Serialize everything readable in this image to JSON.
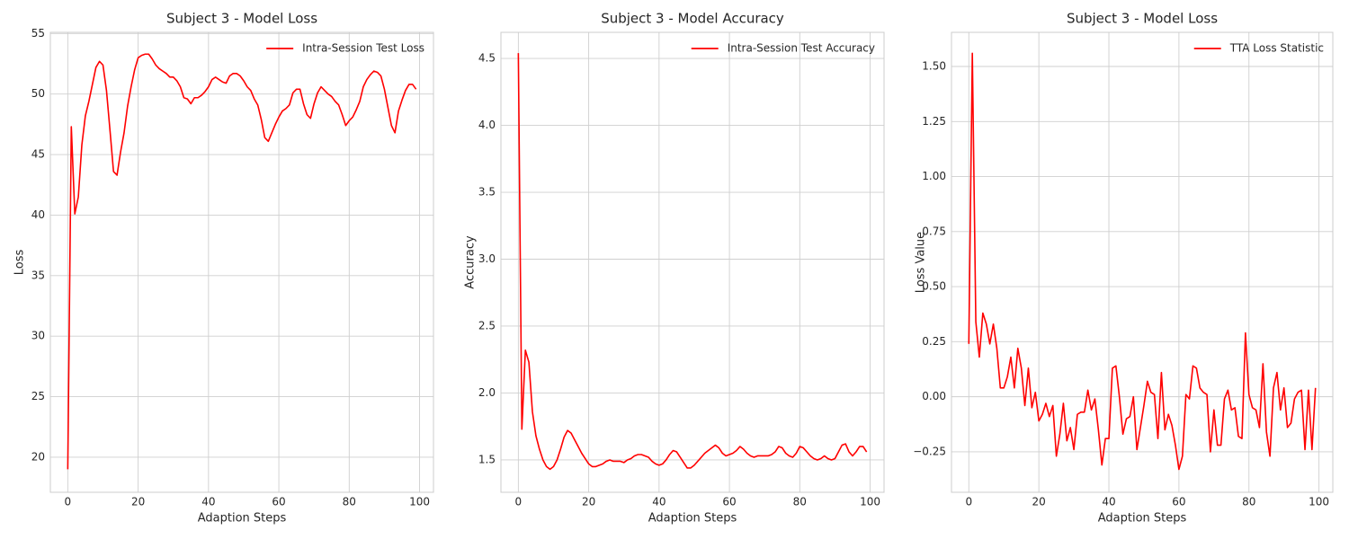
{
  "chart_data": [
    {
      "type": "line",
      "title": "Subject 3 - Model Loss",
      "x_label": "Adaption Steps",
      "y_label": "Loss",
      "x": [
        0,
        1,
        2,
        3,
        4,
        5,
        6,
        7,
        8,
        9,
        10,
        11,
        12,
        13,
        14,
        15,
        16,
        17,
        18,
        19,
        20,
        21,
        22,
        23,
        24,
        25,
        26,
        27,
        28,
        29,
        30,
        31,
        32,
        33,
        34,
        35,
        36,
        37,
        38,
        39,
        40,
        41,
        42,
        43,
        44,
        45,
        46,
        47,
        48,
        49,
        50,
        51,
        52,
        53,
        54,
        55,
        56,
        57,
        58,
        59,
        60,
        61,
        62,
        63,
        64,
        65,
        66,
        67,
        68,
        69,
        70,
        71,
        72,
        73,
        74,
        75,
        76,
        77,
        78,
        79,
        80,
        81,
        82,
        83,
        84,
        85,
        86,
        87,
        88,
        89,
        90,
        91,
        92,
        93,
        94,
        95,
        96,
        97,
        98,
        99
      ],
      "series": [
        {
          "name": "Intra-Session Test Loss",
          "color": "#ff0000",
          "values": [
            19.0,
            47.3,
            40.1,
            41.5,
            45.8,
            48.2,
            49.4,
            50.8,
            52.2,
            52.7,
            52.4,
            50.3,
            47.0,
            43.6,
            43.3,
            45.2,
            46.8,
            49.0,
            50.6,
            52.0,
            53.0,
            53.2,
            53.3,
            53.3,
            52.9,
            52.4,
            52.1,
            51.9,
            51.7,
            51.4,
            51.4,
            51.1,
            50.6,
            49.7,
            49.6,
            49.2,
            49.7,
            49.7,
            49.9,
            50.2,
            50.6,
            51.2,
            51.4,
            51.2,
            51.0,
            50.9,
            51.5,
            51.7,
            51.7,
            51.5,
            51.1,
            50.6,
            50.3,
            49.6,
            49.1,
            47.9,
            46.4,
            46.1,
            46.8,
            47.5,
            48.1,
            48.6,
            48.8,
            49.1,
            50.1,
            50.4,
            50.4,
            49.2,
            48.3,
            48.0,
            49.2,
            50.1,
            50.6,
            50.3,
            50.0,
            49.8,
            49.4,
            49.1,
            48.3,
            47.4,
            47.8,
            48.1,
            48.7,
            49.4,
            50.6,
            51.2,
            51.6,
            51.9,
            51.8,
            51.5,
            50.4,
            48.9,
            47.4,
            46.8,
            48.6,
            49.5,
            50.3,
            50.8,
            50.8,
            50.4
          ]
        }
      ],
      "xlim": [
        -4.95,
        103.95
      ],
      "ylim": [
        17.1,
        55.1
      ],
      "xticks": [
        0,
        20,
        40,
        60,
        80,
        100
      ],
      "yticks": [
        20,
        25,
        30,
        35,
        40,
        45,
        50,
        55
      ],
      "grid": true,
      "legend": "upper right"
    },
    {
      "type": "line",
      "title": "Subject 3 - Model Accuracy",
      "x_label": "Adaption Steps",
      "y_label": "Accuracy",
      "x": [
        0,
        1,
        2,
        3,
        4,
        5,
        6,
        7,
        8,
        9,
        10,
        11,
        12,
        13,
        14,
        15,
        16,
        17,
        18,
        19,
        20,
        21,
        22,
        23,
        24,
        25,
        26,
        27,
        28,
        29,
        30,
        31,
        32,
        33,
        34,
        35,
        36,
        37,
        38,
        39,
        40,
        41,
        42,
        43,
        44,
        45,
        46,
        47,
        48,
        49,
        50,
        51,
        52,
        53,
        54,
        55,
        56,
        57,
        58,
        59,
        60,
        61,
        62,
        63,
        64,
        65,
        66,
        67,
        68,
        69,
        70,
        71,
        72,
        73,
        74,
        75,
        76,
        77,
        78,
        79,
        80,
        81,
        82,
        83,
        84,
        85,
        86,
        87,
        88,
        89,
        90,
        91,
        92,
        93,
        94,
        95,
        96,
        97,
        98,
        99
      ],
      "series": [
        {
          "name": "Intra-Session Test Accuracy",
          "color": "#ff0000",
          "values": [
            4.54,
            1.73,
            2.32,
            2.23,
            1.86,
            1.68,
            1.58,
            1.5,
            1.45,
            1.43,
            1.45,
            1.5,
            1.58,
            1.67,
            1.72,
            1.7,
            1.65,
            1.6,
            1.55,
            1.51,
            1.47,
            1.45,
            1.45,
            1.46,
            1.47,
            1.49,
            1.5,
            1.49,
            1.49,
            1.49,
            1.48,
            1.5,
            1.51,
            1.53,
            1.54,
            1.54,
            1.53,
            1.52,
            1.49,
            1.47,
            1.46,
            1.47,
            1.5,
            1.54,
            1.57,
            1.56,
            1.52,
            1.48,
            1.44,
            1.44,
            1.46,
            1.49,
            1.52,
            1.55,
            1.57,
            1.59,
            1.61,
            1.59,
            1.55,
            1.53,
            1.54,
            1.55,
            1.57,
            1.6,
            1.58,
            1.55,
            1.53,
            1.52,
            1.53,
            1.53,
            1.53,
            1.53,
            1.54,
            1.56,
            1.6,
            1.59,
            1.55,
            1.53,
            1.52,
            1.55,
            1.6,
            1.59,
            1.56,
            1.53,
            1.51,
            1.5,
            1.51,
            1.53,
            1.51,
            1.5,
            1.51,
            1.56,
            1.61,
            1.62,
            1.56,
            1.53,
            1.56,
            1.6,
            1.6,
            1.56
          ]
        }
      ],
      "xlim": [
        -4.95,
        103.95
      ],
      "ylim": [
        1.258,
        4.695
      ],
      "xticks": [
        0,
        20,
        40,
        60,
        80,
        100
      ],
      "yticks": [
        1.5,
        {
          "value": 2,
          "label": "2.0"
        },
        2.5,
        {
          "value": 3,
          "label": "3.0"
        },
        3.5,
        {
          "value": 4,
          "label": "4.0"
        },
        4.5
      ],
      "grid": true,
      "legend": "upper right"
    },
    {
      "type": "line",
      "title": "Subject 3 - Model Loss",
      "x_label": "Adaption Steps",
      "y_label": "Loss Value",
      "x": [
        0,
        1,
        2,
        3,
        4,
        5,
        6,
        7,
        8,
        9,
        10,
        11,
        12,
        13,
        14,
        15,
        16,
        17,
        18,
        19,
        20,
        21,
        22,
        23,
        24,
        25,
        26,
        27,
        28,
        29,
        30,
        31,
        32,
        33,
        34,
        35,
        36,
        37,
        38,
        39,
        40,
        41,
        42,
        43,
        44,
        45,
        46,
        47,
        48,
        49,
        50,
        51,
        52,
        53,
        54,
        55,
        56,
        57,
        58,
        59,
        60,
        61,
        62,
        63,
        64,
        65,
        66,
        67,
        68,
        69,
        70,
        71,
        72,
        73,
        74,
        75,
        76,
        77,
        78,
        79,
        80,
        81,
        82,
        83,
        84,
        85,
        86,
        87,
        88,
        89,
        90,
        91,
        92,
        93,
        94,
        95,
        96,
        97,
        98,
        99
      ],
      "series": [
        {
          "name": "TTA Loss Statistic",
          "color": "#ff0000",
          "values": [
            0.24,
            1.56,
            0.34,
            0.18,
            0.38,
            0.33,
            0.24,
            0.33,
            0.22,
            0.04,
            0.04,
            0.09,
            0.18,
            0.04,
            0.22,
            0.13,
            -0.04,
            0.13,
            -0.05,
            0.02,
            -0.11,
            -0.08,
            -0.03,
            -0.09,
            -0.04,
            -0.27,
            -0.17,
            -0.03,
            -0.2,
            -0.14,
            -0.24,
            -0.08,
            -0.07,
            -0.07,
            0.03,
            -0.06,
            -0.01,
            -0.15,
            -0.31,
            -0.19,
            -0.19,
            0.13,
            0.14,
            0.0,
            -0.17,
            -0.1,
            -0.09,
            0.0,
            -0.24,
            -0.14,
            -0.04,
            0.07,
            0.02,
            0.01,
            -0.19,
            0.11,
            -0.15,
            -0.08,
            -0.13,
            -0.22,
            -0.33,
            -0.27,
            0.01,
            -0.01,
            0.14,
            0.13,
            0.04,
            0.02,
            0.01,
            -0.25,
            -0.06,
            -0.22,
            -0.22,
            -0.01,
            0.03,
            -0.06,
            -0.05,
            -0.18,
            -0.19,
            0.29,
            0.01,
            -0.05,
            -0.06,
            -0.14,
            0.15,
            -0.16,
            -0.27,
            0.04,
            0.11,
            -0.06,
            0.04,
            -0.14,
            -0.12,
            -0.01,
            0.02,
            0.03,
            -0.24,
            0.03,
            -0.24,
            0.04
          ]
        }
      ],
      "xlim": [
        -4.95,
        103.95
      ],
      "ylim": [
        -0.434,
        1.655
      ],
      "xticks": [
        0,
        20,
        40,
        60,
        80,
        100
      ],
      "yticks": [
        {
          "value": -0.25,
          "label": "−0.25"
        },
        {
          "value": 0,
          "label": "0.00"
        },
        {
          "value": 0.25,
          "label": "0.25"
        },
        {
          "value": 0.5,
          "label": "0.50"
        },
        {
          "value": 0.75,
          "label": "0.75"
        },
        {
          "value": 1,
          "label": "1.00"
        },
        {
          "value": 1.25,
          "label": "1.25"
        },
        {
          "value": 1.5,
          "label": "1.50"
        }
      ],
      "grid": true,
      "legend": "upper right"
    }
  ]
}
